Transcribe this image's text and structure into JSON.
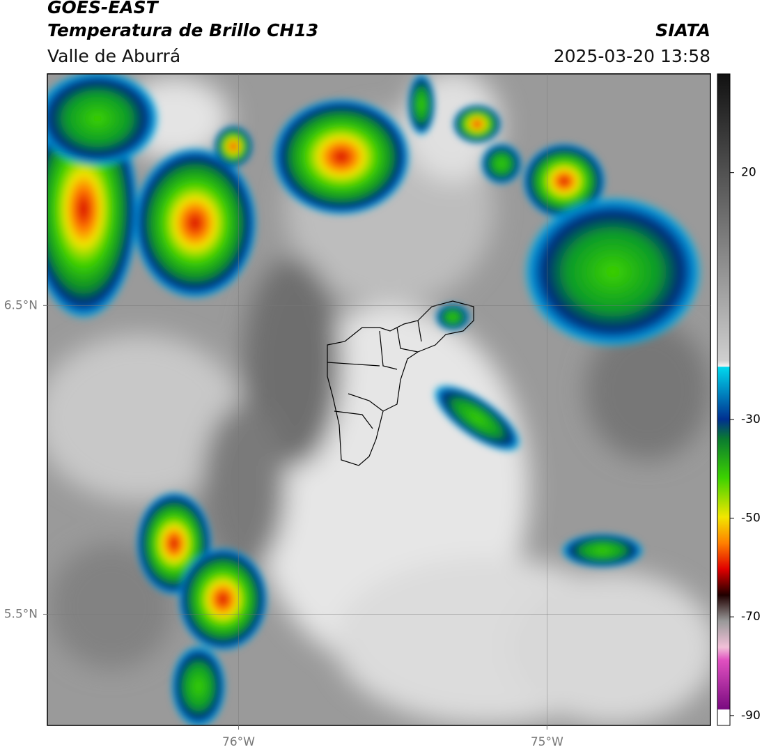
{
  "header": {
    "title": "GOES-EAST",
    "subtitle": "Temperatura de Brillo CH13",
    "region": "Valle de Aburrá",
    "source": "SIATA",
    "datetime": "2025-03-20 13:58"
  },
  "map": {
    "xlim": [
      -76.62,
      -74.47
    ],
    "ylim": [
      5.14,
      7.25
    ],
    "xticks": [
      {
        "value": -76,
        "label": "76°W"
      },
      {
        "value": -75,
        "label": "75°W"
      }
    ],
    "yticks": [
      {
        "value": 6.5,
        "label": "6.5°N"
      },
      {
        "value": 5.5,
        "label": "5.5°N"
      }
    ]
  },
  "colorbar": {
    "lim": [
      -92,
      40
    ],
    "ticks": [
      20,
      -30,
      -50,
      -70,
      -90
    ]
  }
}
